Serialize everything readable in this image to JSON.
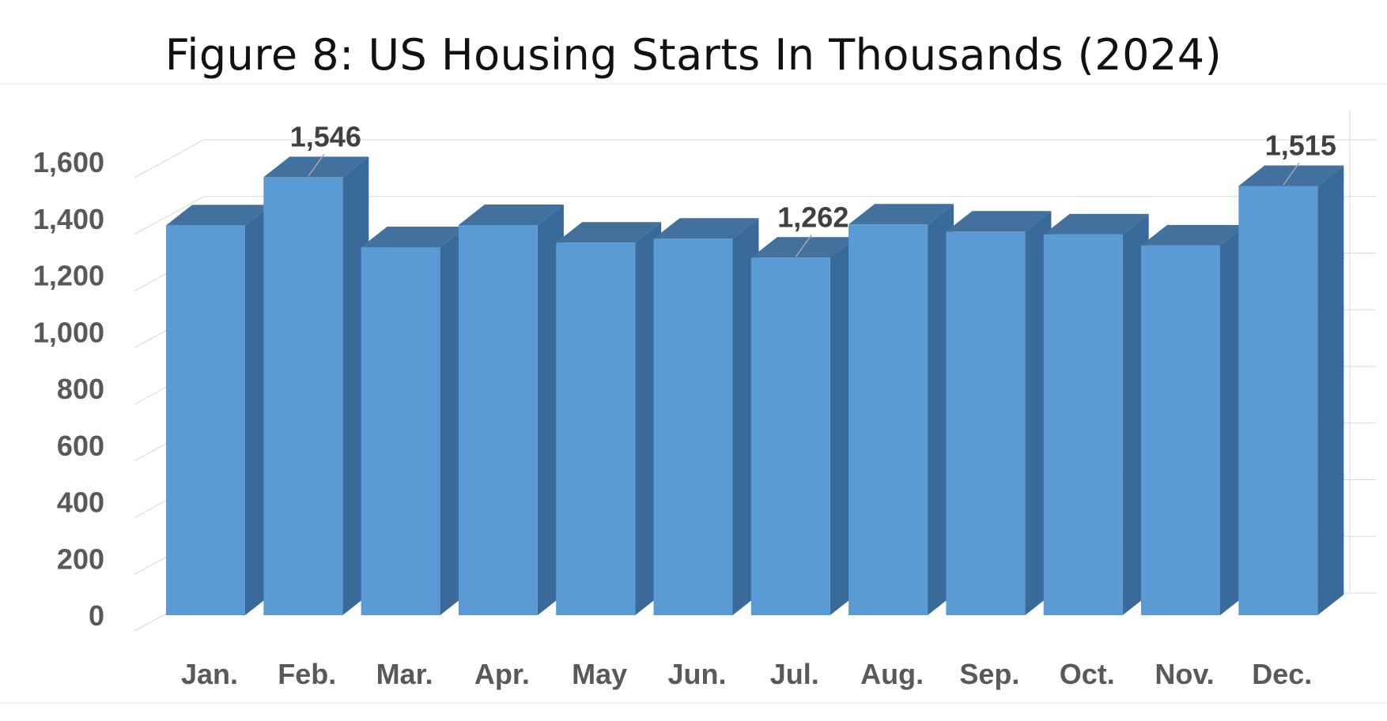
{
  "chart_data": {
    "type": "bar",
    "title": "Figure 8: US Housing Starts In Thousands (2024)",
    "categories": [
      "Jan.",
      "Feb.",
      "Mar.",
      "Apr.",
      "May",
      "Jun.",
      "Jul.",
      "Aug.",
      "Sep.",
      "Oct.",
      "Nov.",
      "Dec."
    ],
    "series": [
      {
        "values": [
          1376,
          1546,
          1299,
          1377,
          1315,
          1329,
          1262,
          1379,
          1354,
          1344,
          1305,
          1515
        ]
      }
    ],
    "data_labels": [
      {
        "category": "Feb.",
        "text": "1,546"
      },
      {
        "category": "Jul.",
        "text": "1,262"
      },
      {
        "category": "Dec.",
        "text": "1,515"
      }
    ],
    "y_ticks": [
      "0",
      "200",
      "400",
      "600",
      "800",
      "1,000",
      "1,200",
      "1,400",
      "1,600"
    ],
    "ylim": [
      0,
      1700
    ],
    "xlabel": "",
    "ylabel": "",
    "grid": true,
    "style": "3d-column",
    "colors": {
      "bar_front": "#5b9bd5",
      "bar_top": "#41719c",
      "bar_side": "#3a6a9a",
      "axis_text": "#595959",
      "data_label": "#404040",
      "gridline": "#d9d9d9"
    }
  }
}
